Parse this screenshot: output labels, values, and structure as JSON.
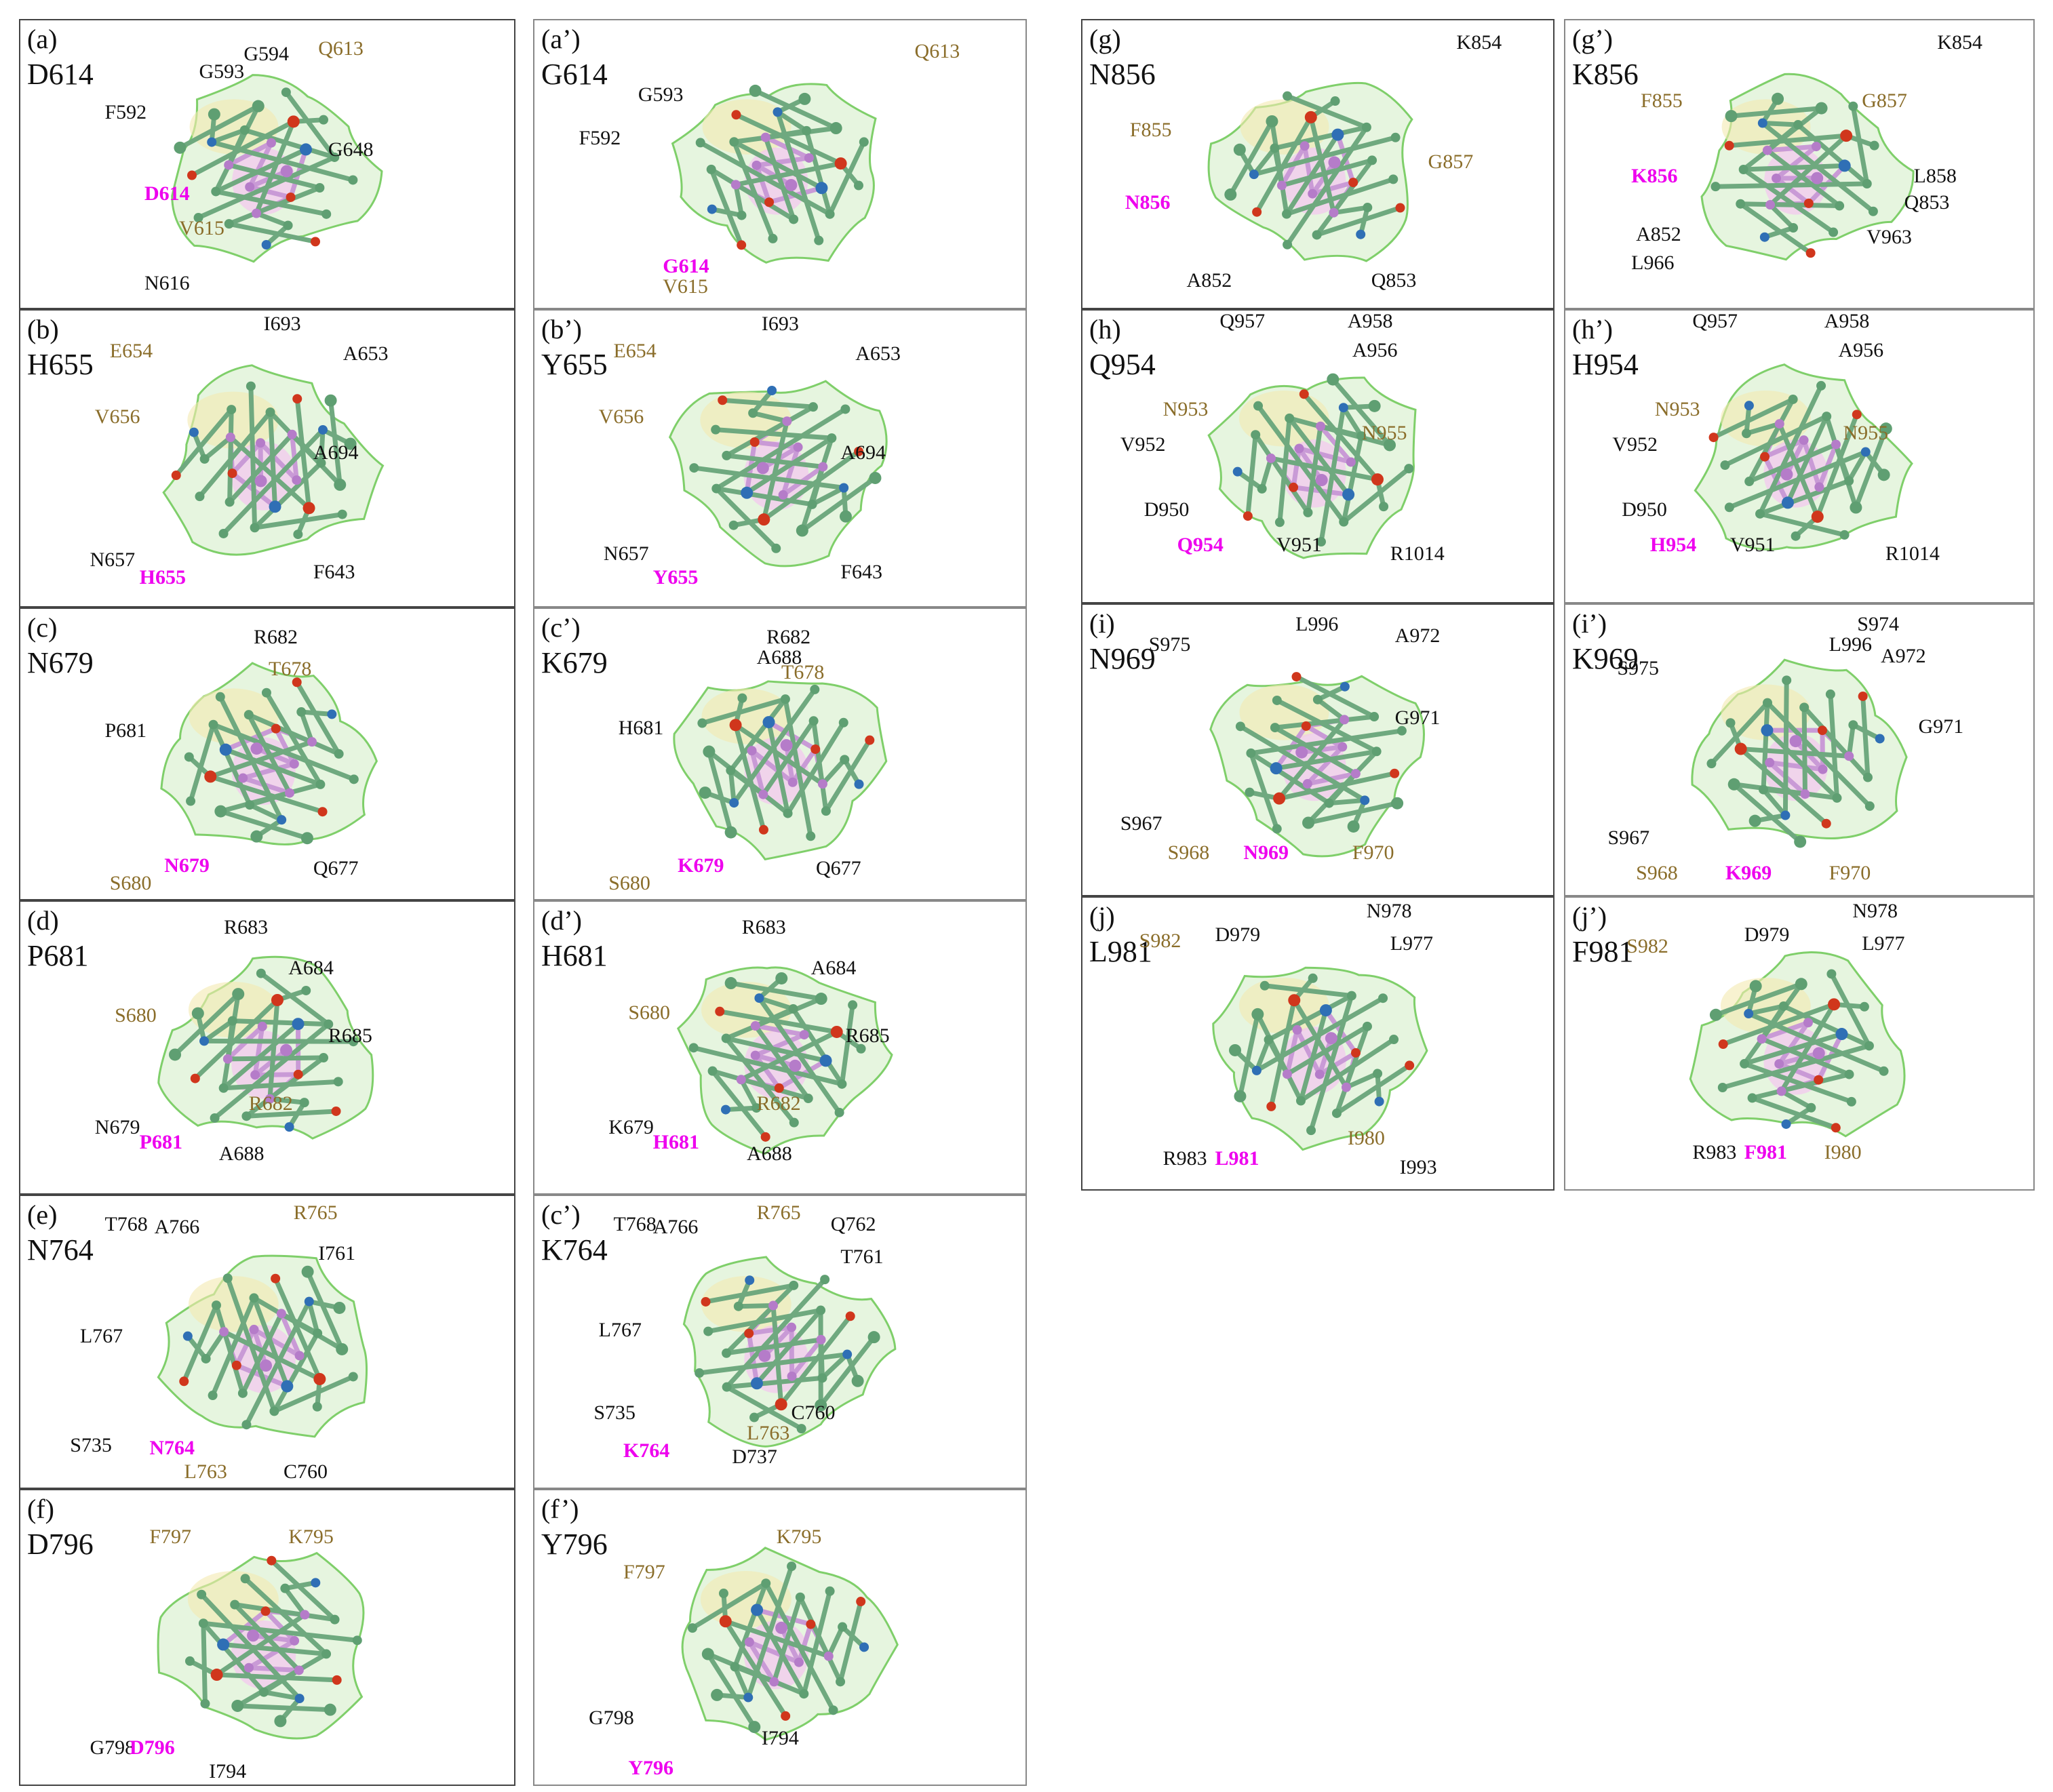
{
  "colors": {
    "black": "#111111",
    "tan": "#8a6d2a",
    "magenta": "#ee00ee",
    "surfaceGreen": "#c8e8b8",
    "surfaceYellow": "#f3eab0",
    "surfacePink": "#f4c6f0"
  },
  "panels": [
    {
      "id": "a",
      "label": "(a)",
      "name": "D614",
      "residues": [
        [
          "G594",
          "k"
        ],
        [
          "Q613",
          "t"
        ],
        [
          "G593",
          "k"
        ],
        [
          "F592",
          "k"
        ],
        [
          "G648",
          "k"
        ],
        [
          "D614",
          "m"
        ],
        [
          "V615",
          "t"
        ],
        [
          "N616",
          "k"
        ]
      ]
    },
    {
      "id": "a2",
      "label": "(a’)",
      "name": "G614",
      "residues": [
        [
          "Q613",
          "t"
        ],
        [
          "G593",
          "k"
        ],
        [
          "F592",
          "k"
        ],
        [
          "G614",
          "m"
        ],
        [
          "V615",
          "t"
        ]
      ]
    },
    {
      "id": "b",
      "label": "(b)",
      "name": "H655",
      "residues": [
        [
          "I693",
          "k"
        ],
        [
          "E654",
          "t"
        ],
        [
          "A653",
          "k"
        ],
        [
          "V656",
          "t"
        ],
        [
          "A694",
          "k"
        ],
        [
          "N657",
          "k"
        ],
        [
          "H655",
          "m"
        ],
        [
          "F643",
          "k"
        ]
      ]
    },
    {
      "id": "b2",
      "label": "(b’)",
      "name": "Y655",
      "residues": [
        [
          "I693",
          "k"
        ],
        [
          "E654",
          "t"
        ],
        [
          "A653",
          "k"
        ],
        [
          "V656",
          "t"
        ],
        [
          "A694",
          "k"
        ],
        [
          "N657",
          "k"
        ],
        [
          "Y655",
          "m"
        ],
        [
          "F643",
          "k"
        ]
      ]
    },
    {
      "id": "c",
      "label": "(c)",
      "name": "N679",
      "residues": [
        [
          "R682",
          "k"
        ],
        [
          "T678",
          "t"
        ],
        [
          "P681",
          "k"
        ],
        [
          "N679",
          "m"
        ],
        [
          "Q677",
          "k"
        ],
        [
          "S680",
          "t"
        ]
      ]
    },
    {
      "id": "c2",
      "label": "(c’)",
      "name": "K679",
      "residues": [
        [
          "R682",
          "k"
        ],
        [
          "A688",
          "k"
        ],
        [
          "T678",
          "t"
        ],
        [
          "H681",
          "k"
        ],
        [
          "K679",
          "m"
        ],
        [
          "Q677",
          "k"
        ],
        [
          "S680",
          "t"
        ]
      ]
    },
    {
      "id": "d",
      "label": "(d)",
      "name": "P681",
      "residues": [
        [
          "R683",
          "k"
        ],
        [
          "A684",
          "k"
        ],
        [
          "S680",
          "t"
        ],
        [
          "R685",
          "k"
        ],
        [
          "R682",
          "t"
        ],
        [
          "N679",
          "k"
        ],
        [
          "P681",
          "m"
        ],
        [
          "A688",
          "k"
        ]
      ]
    },
    {
      "id": "d2",
      "label": "(d’)",
      "name": "H681",
      "residues": [
        [
          "R683",
          "k"
        ],
        [
          "A684",
          "k"
        ],
        [
          "S680",
          "t"
        ],
        [
          "R685",
          "k"
        ],
        [
          "R682",
          "t"
        ],
        [
          "K679",
          "k"
        ],
        [
          "H681",
          "m"
        ],
        [
          "A688",
          "k"
        ]
      ]
    },
    {
      "id": "e",
      "label": "(e)",
      "name": "N764",
      "residues": [
        [
          "T768",
          "k"
        ],
        [
          "A766",
          "k"
        ],
        [
          "R765",
          "t"
        ],
        [
          "I761",
          "k"
        ],
        [
          "L767",
          "k"
        ],
        [
          "S735",
          "k"
        ],
        [
          "N764",
          "m"
        ],
        [
          "L763",
          "t"
        ],
        [
          "C760",
          "k"
        ]
      ]
    },
    {
      "id": "e2",
      "label": "(c’)",
      "name": "K764",
      "residues": [
        [
          "T768",
          "k"
        ],
        [
          "A766",
          "k"
        ],
        [
          "R765",
          "t"
        ],
        [
          "Q762",
          "k"
        ],
        [
          "T761",
          "k"
        ],
        [
          "L767",
          "k"
        ],
        [
          "S735",
          "k"
        ],
        [
          "C760",
          "k"
        ],
        [
          "K764",
          "m"
        ],
        [
          "L763",
          "t"
        ],
        [
          "D737",
          "k"
        ]
      ]
    },
    {
      "id": "f",
      "label": "(f)",
      "name": "D796",
      "residues": [
        [
          "F797",
          "t"
        ],
        [
          "K795",
          "t"
        ],
        [
          "G798",
          "k"
        ],
        [
          "D796",
          "m"
        ],
        [
          "I794",
          "k"
        ]
      ]
    },
    {
      "id": "f2",
      "label": "(f’)",
      "name": "Y796",
      "residues": [
        [
          "K795",
          "t"
        ],
        [
          "F797",
          "t"
        ],
        [
          "G798",
          "k"
        ],
        [
          "I794",
          "k"
        ],
        [
          "Y796",
          "m"
        ]
      ]
    },
    {
      "id": "g",
      "label": "(g)",
      "name": "N856",
      "residues": [
        [
          "K854",
          "k"
        ],
        [
          "F855",
          "t"
        ],
        [
          "G857",
          "t"
        ],
        [
          "N856",
          "m"
        ],
        [
          "A852",
          "k"
        ],
        [
          "Q853",
          "k"
        ]
      ]
    },
    {
      "id": "g2",
      "label": "(g’)",
      "name": "K856",
      "residues": [
        [
          "K854",
          "k"
        ],
        [
          "F855",
          "t"
        ],
        [
          "G857",
          "t"
        ],
        [
          "L858",
          "k"
        ],
        [
          "K856",
          "m"
        ],
        [
          "Q853",
          "k"
        ],
        [
          "A852",
          "k"
        ],
        [
          "V963",
          "k"
        ],
        [
          "L966",
          "k"
        ]
      ]
    },
    {
      "id": "h",
      "label": "(h)",
      "name": "Q954",
      "residues": [
        [
          "Q957",
          "k"
        ],
        [
          "A958",
          "k"
        ],
        [
          "A956",
          "k"
        ],
        [
          "N953",
          "t"
        ],
        [
          "N955",
          "t"
        ],
        [
          "V952",
          "k"
        ],
        [
          "D950",
          "k"
        ],
        [
          "Q954",
          "m"
        ],
        [
          "V951",
          "k"
        ],
        [
          "R1014",
          "k"
        ]
      ]
    },
    {
      "id": "h2",
      "label": "(h’)",
      "name": "H954",
      "residues": [
        [
          "Q957",
          "k"
        ],
        [
          "A958",
          "k"
        ],
        [
          "A956",
          "k"
        ],
        [
          "N953",
          "t"
        ],
        [
          "N955",
          "t"
        ],
        [
          "V952",
          "k"
        ],
        [
          "D950",
          "k"
        ],
        [
          "H954",
          "m"
        ],
        [
          "V951",
          "k"
        ],
        [
          "R1014",
          "k"
        ]
      ]
    },
    {
      "id": "i",
      "label": "(i)",
      "name": "N969",
      "residues": [
        [
          "L996",
          "k"
        ],
        [
          "S975",
          "k"
        ],
        [
          "A972",
          "k"
        ],
        [
          "G971",
          "k"
        ],
        [
          "S967",
          "k"
        ],
        [
          "S968",
          "t"
        ],
        [
          "N969",
          "m"
        ],
        [
          "F970",
          "t"
        ]
      ]
    },
    {
      "id": "i2",
      "label": "(i’)",
      "name": "K969",
      "residues": [
        [
          "S974",
          "k"
        ],
        [
          "L996",
          "k"
        ],
        [
          "A972",
          "k"
        ],
        [
          "S975",
          "k"
        ],
        [
          "G971",
          "k"
        ],
        [
          "S967",
          "k"
        ],
        [
          "S968",
          "t"
        ],
        [
          "K969",
          "m"
        ],
        [
          "F970",
          "t"
        ]
      ]
    },
    {
      "id": "j",
      "label": "(j)",
      "name": "L981",
      "residues": [
        [
          "N978",
          "k"
        ],
        [
          "S982",
          "t"
        ],
        [
          "D979",
          "k"
        ],
        [
          "L977",
          "k"
        ],
        [
          "I980",
          "t"
        ],
        [
          "R983",
          "k"
        ],
        [
          "L981",
          "m"
        ],
        [
          "I993",
          "k"
        ]
      ]
    },
    {
      "id": "j2",
      "label": "(j’)",
      "name": "F981",
      "residues": [
        [
          "N978",
          "k"
        ],
        [
          "D979",
          "k"
        ],
        [
          "S982",
          "t"
        ],
        [
          "L977",
          "k"
        ],
        [
          "R983",
          "k"
        ],
        [
          "F981",
          "m"
        ],
        [
          "I980",
          "t"
        ]
      ]
    }
  ]
}
